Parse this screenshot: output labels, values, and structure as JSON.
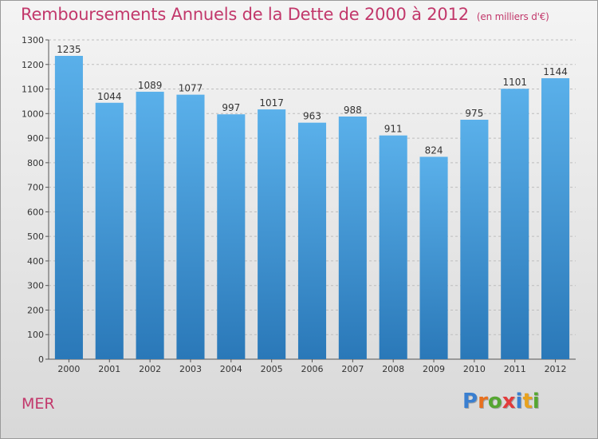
{
  "header": {
    "title": "Remboursements Annuels de la Dette de 2000 à 2012",
    "unit": "(en milliers d'€)"
  },
  "footer": {
    "commune": "MER",
    "logo_text": "Proxiti"
  },
  "colors": {
    "title": "#c2386b",
    "bar_top": "#5ab0ea",
    "bar_bottom": "#2a78b8",
    "gridline": "#bdbdbd",
    "logo": [
      "#3a7fd0",
      "#e8701e",
      "#56a632",
      "#e23b3b",
      "#3a7fd0",
      "#e8a21e",
      "#56a632"
    ]
  },
  "chart_data": {
    "type": "bar",
    "title": "Remboursements Annuels de la Dette de 2000 à 2012",
    "categories": [
      "2000",
      "2001",
      "2002",
      "2003",
      "2004",
      "2005",
      "2006",
      "2007",
      "2008",
      "2009",
      "2010",
      "2011",
      "2012"
    ],
    "values": [
      1235,
      1044,
      1089,
      1077,
      997,
      1017,
      963,
      988,
      911,
      824,
      975,
      1101,
      1144
    ],
    "ylim": [
      0,
      1300
    ],
    "yticks": [
      0,
      100,
      200,
      300,
      400,
      500,
      600,
      700,
      800,
      900,
      1000,
      1100,
      1200,
      1300
    ],
    "grid": true,
    "legend": "none"
  }
}
